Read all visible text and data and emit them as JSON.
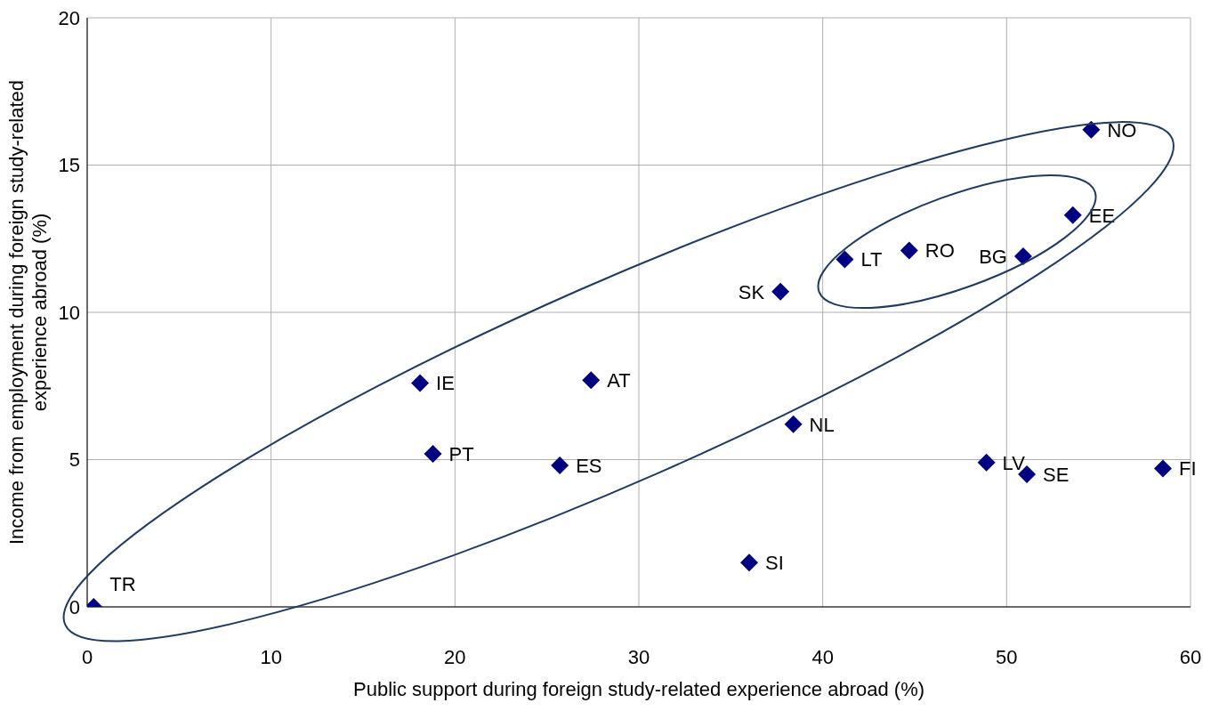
{
  "chart_data": {
    "type": "scatter",
    "xlabel": "Public support during foreign study-related experience abroad (%)",
    "ylabel": "Income from employment during foreign study-related experience abroad (%)",
    "x": [
      0.35,
      18.1,
      18.8,
      25.7,
      27.4,
      38.4,
      37.7,
      36.0,
      41.2,
      44.7,
      50.9,
      53.6,
      54.6,
      48.9,
      51.1,
      58.5
    ],
    "values": [
      0,
      7.6,
      5.2,
      4.8,
      7.7,
      6.2,
      10.7,
      1.5,
      11.8,
      12.1,
      11.9,
      13.3,
      16.2,
      4.9,
      4.5,
      4.7
    ],
    "color": "#000080",
    "marker": "diamond",
    "xlim": [
      0,
      60
    ],
    "xticks": [
      0,
      10,
      20,
      30,
      40,
      50,
      60
    ],
    "ylim": [
      0,
      20
    ],
    "yticks": [
      0,
      5,
      10,
      15,
      20
    ],
    "grid": true,
    "annotations": [
      {
        "text": "TR",
        "x": 0.35,
        "y": 0
      },
      {
        "text": "IE",
        "x": 18.1,
        "y": 7.6
      },
      {
        "text": "PT",
        "x": 18.8,
        "y": 5.2
      },
      {
        "text": "ES",
        "x": 25.7,
        "y": 4.8
      },
      {
        "text": "AT",
        "x": 27.4,
        "y": 7.7
      },
      {
        "text": "NL",
        "x": 38.4,
        "y": 6.2
      },
      {
        "text": "SK",
        "x": 37.7,
        "y": 10.7
      },
      {
        "text": "SI",
        "x": 36.0,
        "y": 1.5
      },
      {
        "text": "LT",
        "x": 41.2,
        "y": 11.8
      },
      {
        "text": "RO",
        "x": 44.7,
        "y": 12.1
      },
      {
        "text": "BG",
        "x": 50.9,
        "y": 11.9
      },
      {
        "text": "EE",
        "x": 53.6,
        "y": 13.3
      },
      {
        "text": "NO",
        "x": 54.6,
        "y": 16.2
      },
      {
        "text": "LV",
        "x": 48.9,
        "y": 4.9
      },
      {
        "text": "SE",
        "x": 51.1,
        "y": 4.5
      },
      {
        "text": "FI",
        "x": 58.5,
        "y": 4.7
      }
    ]
  }
}
